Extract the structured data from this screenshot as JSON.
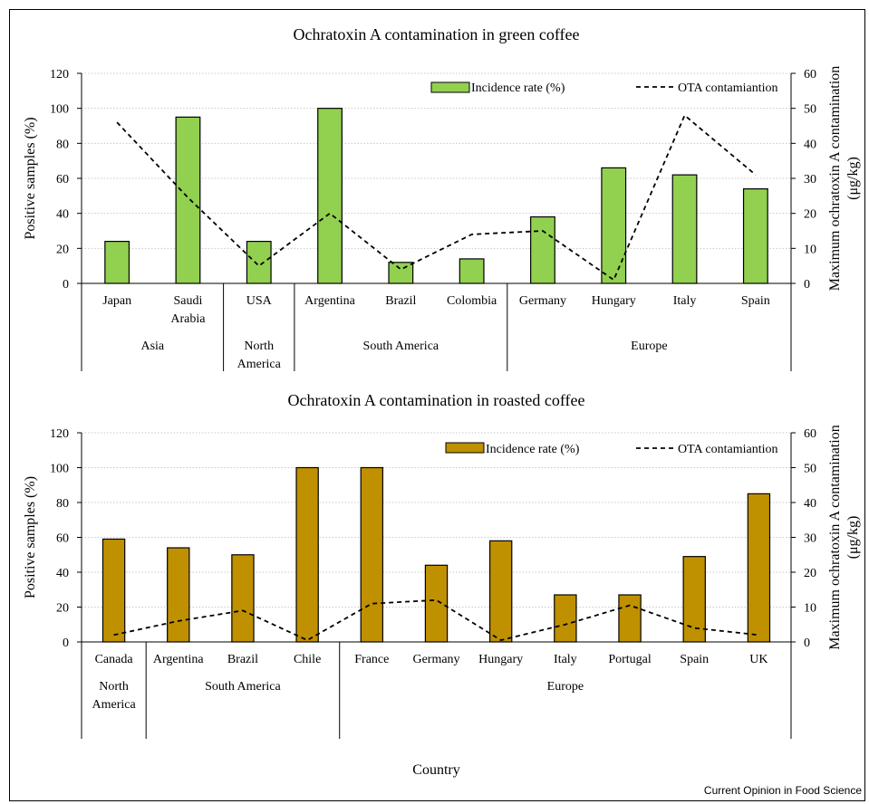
{
  "chart_data": [
    {
      "type": "bar",
      "title": "Ochratoxin A contamination in green coffee",
      "ylabel": "Positive samples (%)",
      "y2label_line1": "Maximum ochratoxin A contamination",
      "y2label_line2": "(μg/kg)",
      "ylim": [
        0,
        120
      ],
      "y2lim": [
        0,
        60
      ],
      "yticks": [
        0,
        20,
        40,
        60,
        80,
        100,
        120
      ],
      "y2ticks": [
        0,
        10,
        20,
        30,
        40,
        50,
        60
      ],
      "grid": true,
      "legend_position": "top-right",
      "bar_color": "#92D050",
      "categories": [
        [
          "Japan"
        ],
        [
          "Saudi",
          "Arabia"
        ],
        [
          "USA"
        ],
        [
          "Argentina"
        ],
        [
          "Brazil"
        ],
        [
          "Colombia"
        ],
        [
          "Germany"
        ],
        [
          "Hungary"
        ],
        [
          "Italy"
        ],
        [
          "Spain"
        ]
      ],
      "groups": [
        {
          "label": [
            "Asia"
          ],
          "count": 2
        },
        {
          "label": [
            "North",
            "America"
          ],
          "count": 1
        },
        {
          "label": [
            "South America"
          ],
          "count": 3
        },
        {
          "label": [
            "Europe"
          ],
          "count": 4
        }
      ],
      "series": [
        {
          "name": "Incidence rate (%)",
          "kind": "bar",
          "axis": "left",
          "values": [
            24,
            95,
            24,
            100,
            12,
            14,
            38,
            66,
            62,
            54
          ]
        },
        {
          "name": "OTA contamiantion",
          "kind": "dashed-line",
          "axis": "right",
          "values": [
            46,
            24.5,
            5,
            20,
            4,
            14,
            15,
            1,
            48,
            31
          ]
        }
      ]
    },
    {
      "type": "bar",
      "title": "Ochratoxin A contamination in roasted coffee",
      "ylabel": "Positive samples (%)",
      "y2label_line1": "Maximum ochratoxin A contamination",
      "y2label_line2": "(μg/kg)",
      "ylim": [
        0,
        120
      ],
      "y2lim": [
        0,
        60
      ],
      "yticks": [
        0,
        20,
        40,
        60,
        80,
        100,
        120
      ],
      "y2ticks": [
        0,
        10,
        20,
        30,
        40,
        50,
        60
      ],
      "grid": true,
      "legend_position": "top-right",
      "bar_color": "#BF9000",
      "categories": [
        [
          "Canada"
        ],
        [
          "Argentina"
        ],
        [
          "Brazil"
        ],
        [
          "Chile"
        ],
        [
          "France"
        ],
        [
          "Germany"
        ],
        [
          "Hungary"
        ],
        [
          "Italy"
        ],
        [
          "Portugal"
        ],
        [
          "Spain"
        ],
        [
          "UK"
        ]
      ],
      "groups": [
        {
          "label": [
            "North",
            "America"
          ],
          "count": 1
        },
        {
          "label": [
            "South America"
          ],
          "count": 3
        },
        {
          "label": [
            "Europe"
          ],
          "count": 7
        }
      ],
      "series": [
        {
          "name": "Incidence rate (%)",
          "kind": "bar",
          "axis": "left",
          "values": [
            59,
            54,
            50,
            100,
            100,
            44,
            58,
            27,
            27,
            49,
            85
          ]
        },
        {
          "name": "OTA contamiantion",
          "kind": "dashed-line",
          "axis": "right",
          "values": [
            2,
            6,
            9,
            0.5,
            11,
            12,
            0.5,
            5,
            10.5,
            4,
            2
          ]
        }
      ],
      "xlabel": "Country"
    }
  ],
  "credit": "Current Opinion in Food Science"
}
